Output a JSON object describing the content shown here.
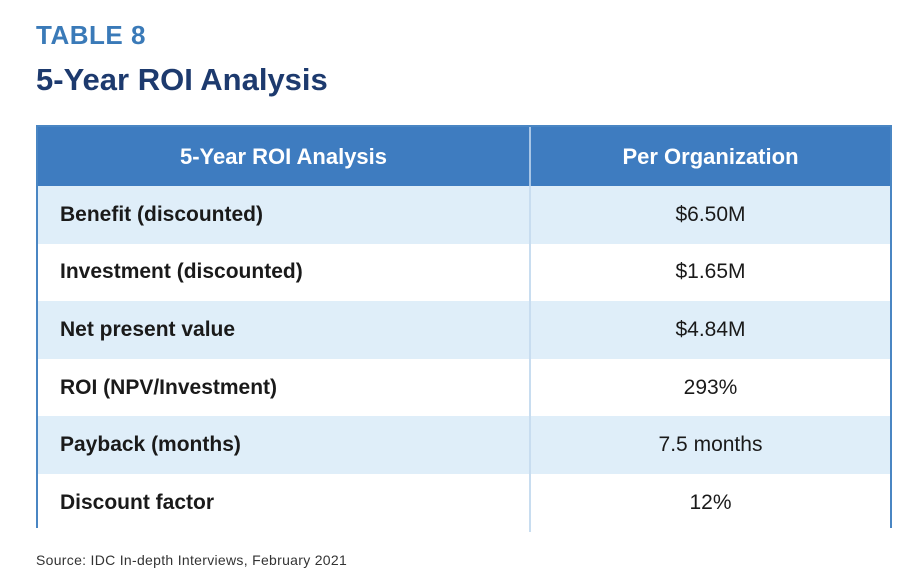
{
  "header": {
    "table_label": "TABLE 8",
    "title": "5-Year ROI Analysis"
  },
  "table": {
    "columns": [
      "5-Year ROI Analysis",
      "Per Organization"
    ],
    "rows": [
      {
        "label": "Benefit (discounted)",
        "value": "$6.50M"
      },
      {
        "label": "Investment (discounted)",
        "value": "$1.65M"
      },
      {
        "label": "Net present value",
        "value": "$4.84M"
      },
      {
        "label": "ROI (NPV/Investment)",
        "value": "293%"
      },
      {
        "label": "Payback (months)",
        "value": "7.5 months"
      },
      {
        "label": "Discount factor",
        "value": "12%"
      }
    ]
  },
  "footer": {
    "source": "Source: IDC In-depth Interviews, February 2021"
  },
  "colors": {
    "label_blue": "#3a7ab8",
    "title_navy": "#1d3a6e",
    "header_bg": "#3e7cc0",
    "stripe_bg": "#dfeef9"
  }
}
